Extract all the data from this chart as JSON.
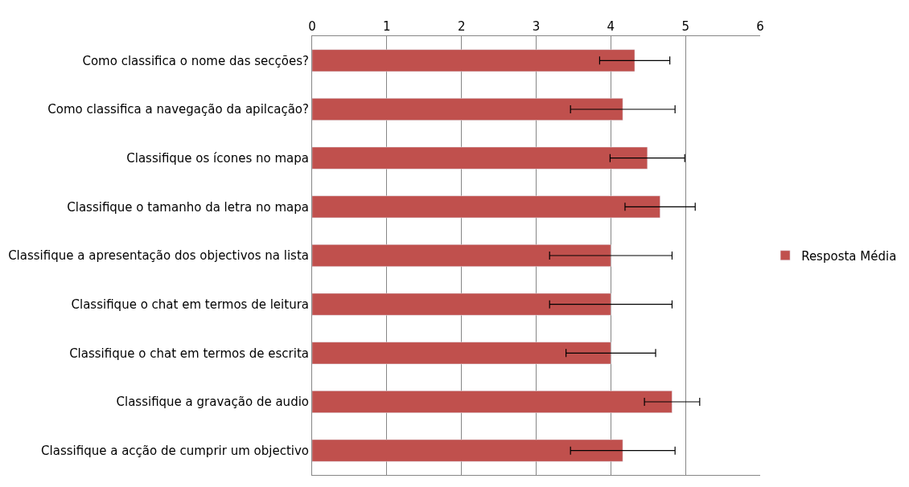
{
  "chart_data": {
    "type": "bar",
    "orientation": "horizontal",
    "categories": [
      "Como classifica o nome das secções?",
      "Como classifica a navegação da apilcação?",
      "Classifique os ícones no mapa",
      "Classifique o tamanho da letra no mapa",
      "Classifique a apresentação dos objectivos na lista",
      "Classifique o chat em termos de leitura",
      "Classifique o chat em termos de escrita",
      "Classifique a gravação de audio",
      "Classifique a acção de cumprir um objectivo"
    ],
    "series": [
      {
        "name": "Resposta Média",
        "color": "#c0504d",
        "values": [
          4.32,
          4.16,
          4.49,
          4.66,
          4.0,
          4.0,
          4.0,
          4.82,
          4.16
        ],
        "errors": [
          0.47,
          0.7,
          0.5,
          0.47,
          0.82,
          0.82,
          0.6,
          0.37,
          0.7
        ]
      }
    ],
    "xlim": [
      0,
      6
    ],
    "xticks": [
      0,
      1,
      2,
      3,
      4,
      5,
      6
    ],
    "grid": "x",
    "legend": "right"
  }
}
